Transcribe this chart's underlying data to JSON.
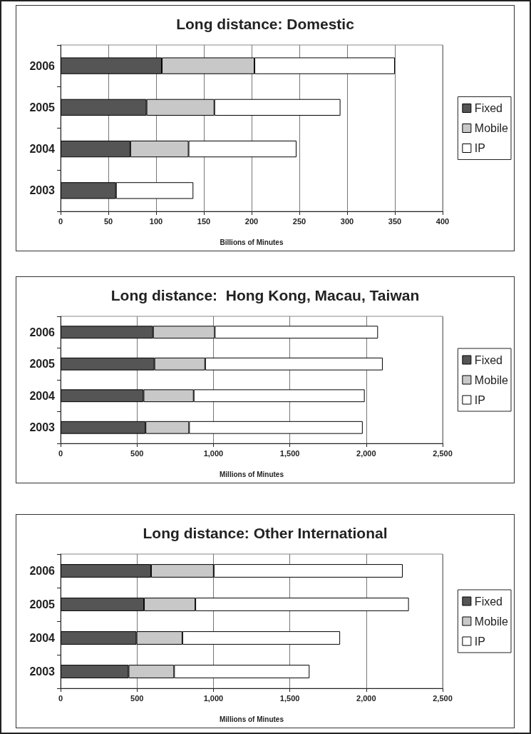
{
  "chart_data": [
    {
      "type": "bar",
      "orientation": "horizontal",
      "stacked": true,
      "title": "Long distance: Domestic",
      "xlabel": "Billions of Minutes",
      "categories": [
        "2006",
        "2005",
        "2004",
        "2003"
      ],
      "series": [
        {
          "name": "Fixed",
          "color": "#555555",
          "values": [
            106,
            90,
            73,
            58
          ]
        },
        {
          "name": "Mobile",
          "color": "#c8c8c8",
          "values": [
            97,
            71,
            61,
            0
          ]
        },
        {
          "name": "IP",
          "color": "#ffffff",
          "values": [
            147,
            132,
            113,
            81
          ]
        }
      ],
      "xlim": [
        0,
        400
      ],
      "xticks": [
        0,
        50,
        100,
        150,
        200,
        250,
        300,
        350,
        400
      ],
      "grid": "x",
      "legend": "right"
    },
    {
      "type": "bar",
      "orientation": "horizontal",
      "stacked": true,
      "title": "Long distance:  Hong Kong, Macau, Taiwan",
      "xlabel": "Millions of Minutes",
      "categories": [
        "2006",
        "2005",
        "2004",
        "2003"
      ],
      "series": [
        {
          "name": "Fixed",
          "color": "#555555",
          "values": [
            605,
            614,
            543,
            556
          ]
        },
        {
          "name": "Mobile",
          "color": "#c8c8c8",
          "values": [
            404,
            332,
            328,
            285
          ]
        },
        {
          "name": "IP",
          "color": "#ffffff",
          "values": [
            1068,
            1162,
            1119,
            1136
          ]
        }
      ],
      "xlim": [
        0,
        2500
      ],
      "xticks": [
        0,
        500,
        {
          "value": 1000,
          "label": "1,000"
        },
        {
          "value": 1500,
          "label": "1,500"
        },
        {
          "value": 2000,
          "label": "2,000"
        },
        {
          "value": 2500,
          "label": "2,500"
        }
      ],
      "grid": "x",
      "legend": "right"
    },
    {
      "type": "bar",
      "orientation": "horizontal",
      "stacked": true,
      "title": "Long distance: Other International",
      "xlabel": "Millions of Minutes",
      "categories": [
        "2006",
        "2005",
        "2004",
        "2003"
      ],
      "series": [
        {
          "name": "Fixed",
          "color": "#555555",
          "values": [
            592,
            546,
            497,
            445
          ]
        },
        {
          "name": "Mobile",
          "color": "#c8c8c8",
          "values": [
            410,
            336,
            300,
            298
          ]
        },
        {
          "name": "IP",
          "color": "#ffffff",
          "values": [
            1237,
            1397,
            1032,
            886
          ]
        }
      ],
      "xlim": [
        0,
        2500
      ],
      "xticks": [
        0,
        500,
        {
          "value": 1000,
          "label": "1,000"
        },
        {
          "value": 1500,
          "label": "1,500"
        },
        {
          "value": 2000,
          "label": "2,000"
        },
        {
          "value": 2500,
          "label": "2,500"
        }
      ],
      "grid": "x",
      "legend": "right"
    }
  ]
}
